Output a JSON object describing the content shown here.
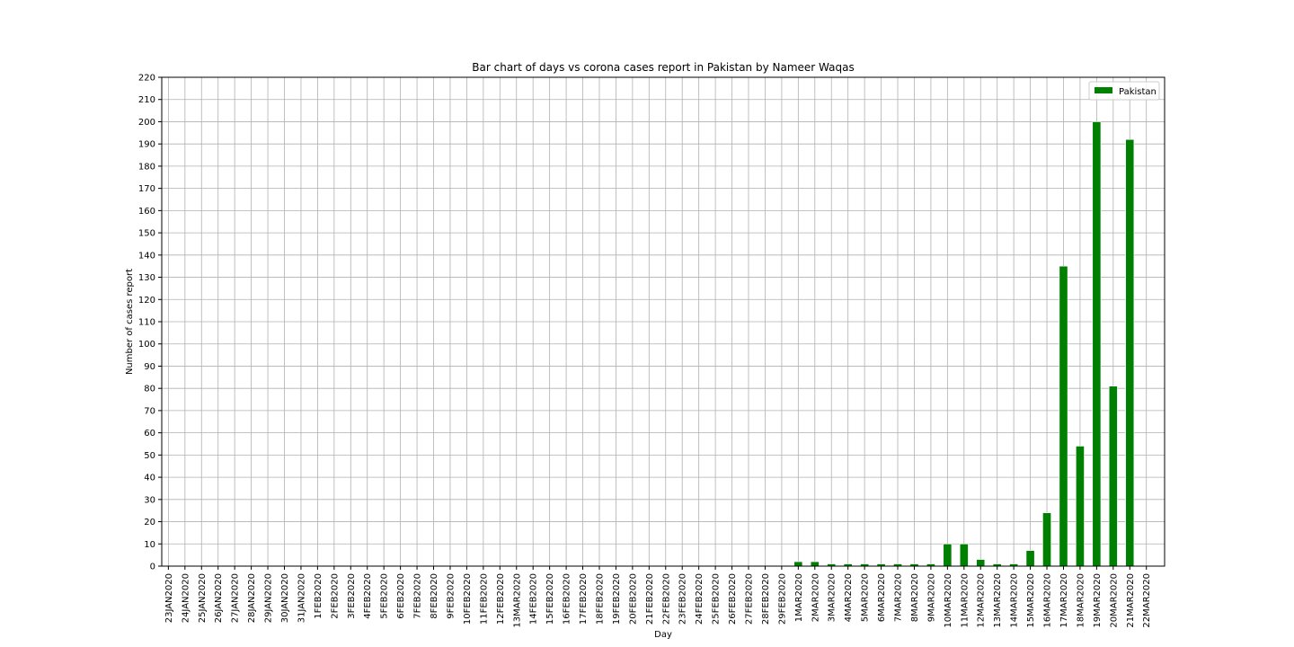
{
  "chart_data": {
    "type": "bar",
    "title": "Bar chart of days vs corona cases report in Pakistan by Nameer Waqas",
    "xlabel": "Day",
    "ylabel": "Number of cases report",
    "ylim": [
      0,
      220
    ],
    "yticks": [
      0,
      10,
      20,
      30,
      40,
      50,
      60,
      70,
      80,
      90,
      100,
      110,
      120,
      130,
      140,
      150,
      160,
      170,
      180,
      190,
      200,
      210,
      220
    ],
    "grid": true,
    "legend_position": "top-right",
    "categories": [
      "23JAN2020",
      "24JAN2020",
      "25JAN2020",
      "26JAN2020",
      "27JAN2020",
      "28JAN2020",
      "29JAN2020",
      "30JAN2020",
      "31JAN2020",
      "1FEB2020",
      "2FEB2020",
      "3FEB2020",
      "4FEB2020",
      "5FEB2020",
      "6FEB2020",
      "7FEB2020",
      "8FEB2020",
      "9FEB2020",
      "10FEB2020",
      "11FEB2020",
      "12FEB2020",
      "13MAR2020",
      "14FEB2020",
      "15FEB2020",
      "16FEB2020",
      "17FEB2020",
      "18FEB2020",
      "19FEB2020",
      "20FEB2020",
      "21FEB2020",
      "22FEB2020",
      "23FEB2020",
      "24FEB2020",
      "25FEB2020",
      "26FEB2020",
      "27FEB2020",
      "28FEB2020",
      "29FEB2020",
      "1MAR2020",
      "2MAR2020",
      "3MAR2020",
      "4MAR2020",
      "5MAR2020",
      "6MAR2020",
      "7MAR2020",
      "8MAR2020",
      "9MAR2020",
      "10MAR2020",
      "11MAR2020",
      "12MAR2020",
      "13MAR2020",
      "14MAR2020",
      "15MAR2020",
      "16MAR2020",
      "17MAR2020",
      "18MAR2020",
      "19MAR2020",
      "20MAR2020",
      "21MAR2020",
      "22MAR2020"
    ],
    "series": [
      {
        "name": "Pakistan",
        "color": "#008000",
        "values": [
          0,
          0,
          0,
          0,
          0,
          0,
          0,
          0,
          0,
          0,
          0,
          0,
          0,
          0,
          0,
          0,
          0,
          0,
          0,
          0,
          0,
          0,
          0,
          0,
          0,
          0,
          0,
          0,
          0,
          0,
          0,
          0,
          0,
          0,
          0,
          0,
          0,
          0,
          2,
          2,
          1,
          1,
          1,
          1,
          1,
          1,
          1,
          10,
          10,
          3,
          1,
          1,
          7,
          24,
          135,
          54,
          200,
          81,
          192,
          0
        ]
      }
    ]
  }
}
